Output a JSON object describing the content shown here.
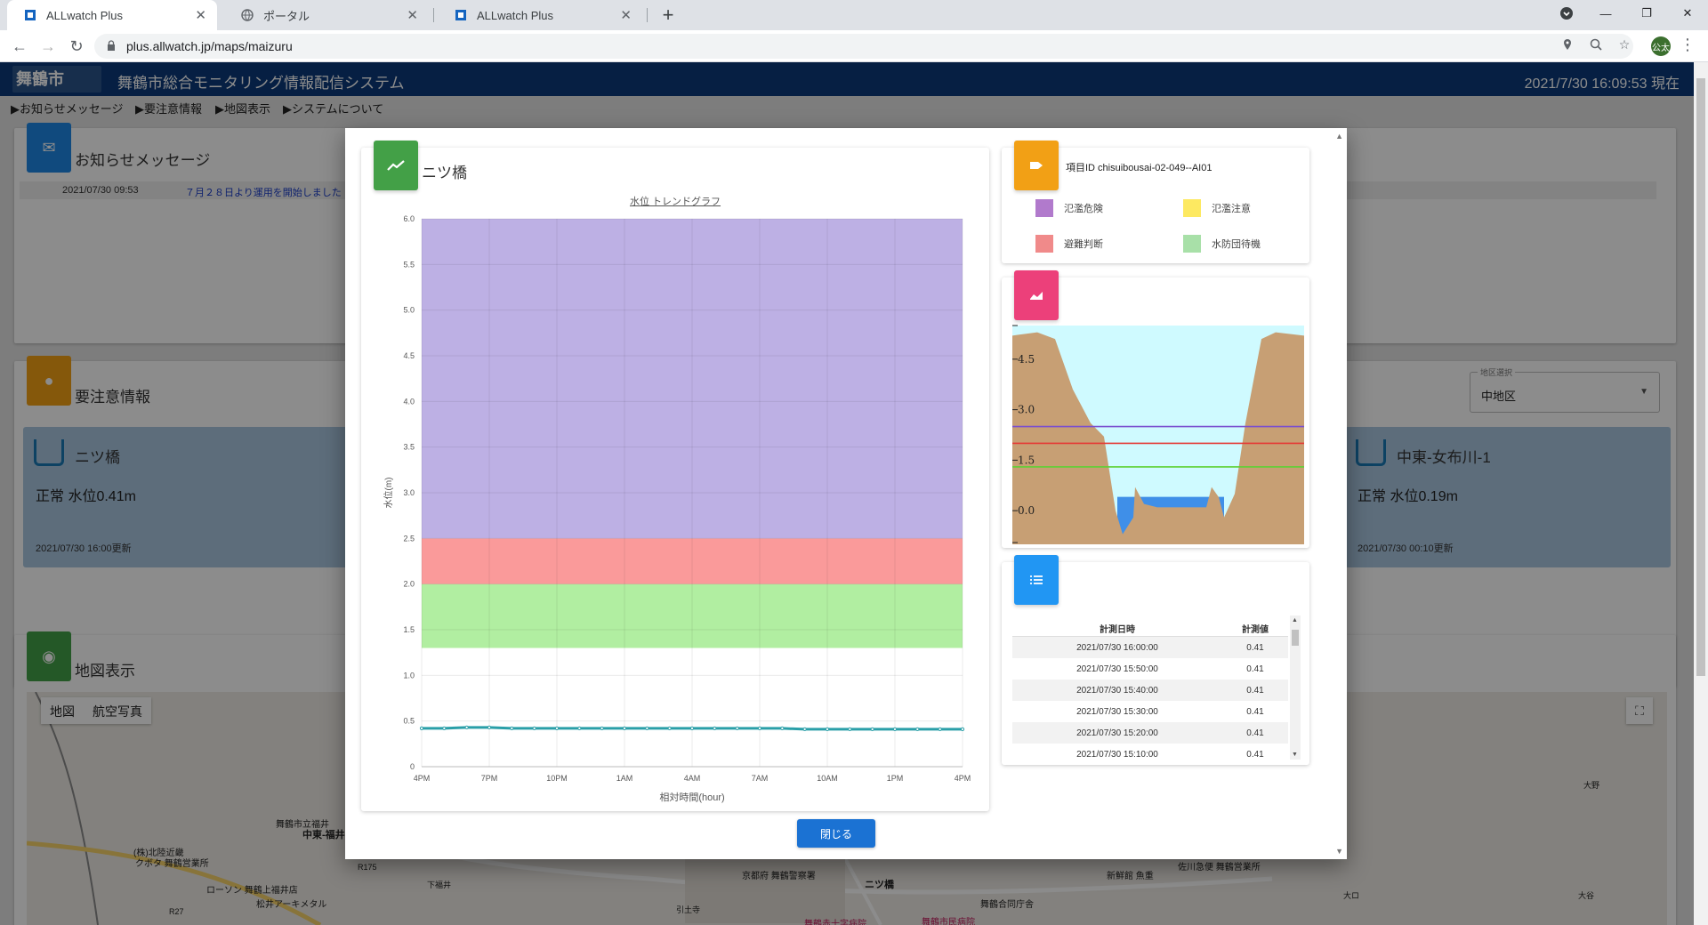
{
  "browser": {
    "tabs": [
      {
        "label": "ALLwatch Plus",
        "active": true
      },
      {
        "label": "ポータル",
        "active": false
      },
      {
        "label": "ALLwatch Plus",
        "active": false
      }
    ],
    "url": "plus.allwatch.jp/maps/maizuru",
    "profile_initials": "公太"
  },
  "site": {
    "logo_text": "舞鶴市",
    "title": "舞鶴市総合モニタリング情報配信システム",
    "datetime": "2021/7/30 16:09:53 現在",
    "nav": [
      "▶お知らせメッセージ",
      "▶要注意情報",
      "▶地図表示",
      "▶システムについて"
    ]
  },
  "notices": {
    "title": "お知らせメッセージ",
    "rows": [
      {
        "date": "2021/07/30 09:53",
        "text": "７月２８日より運用を開始しました"
      }
    ]
  },
  "alerts": {
    "title": "要注意情報",
    "region_label": "地区選択",
    "region_value": "中地区",
    "cards": [
      {
        "name": "ニツ橋",
        "status": "正常 水位0.41m",
        "updated": "2021/07/30 16:00更新"
      },
      {
        "name": "中東-女布川-1",
        "status": "正常 水位0.19m",
        "updated": "2021/07/30 00:10更新"
      }
    ]
  },
  "map_section": {
    "title": "地図表示",
    "toggle": [
      "地図",
      "航空写真"
    ],
    "labels": [
      "中東-福井",
      "ニツ橋",
      "舞鶴市立福井",
      "松井アーキメタル",
      "ローソン 舞鶴上福井店",
      "京都府 舞鶴警察署",
      "新鮮館 魚重",
      "佐川急便 舞鶴営業所",
      "クボタ 舞鶴営業所",
      "(株)北陸近畿",
      "R175",
      "R27",
      "下福井",
      "引土寺",
      "舞鶴赤十字病院",
      "舞鶴市民病院",
      "舞鶴合同庁舎",
      "大野",
      "大谷",
      "大ロ"
    ]
  },
  "modal": {
    "station_name": "ニツ橋",
    "chart_subtitle": "水位 トレンドグラフ",
    "close_label": "閉じる",
    "item_id": "項目ID chisuibousai-02-049--AI01",
    "legend": [
      {
        "label": "氾濫危険",
        "color": "#b17acc"
      },
      {
        "label": "氾濫注意",
        "color": "#fde961"
      },
      {
        "label": "避難判断",
        "color": "#f08a8a"
      },
      {
        "label": "水防団待機",
        "color": "#a8e0a8"
      }
    ],
    "table": {
      "headers": [
        "計測日時",
        "計測値"
      ],
      "rows": [
        {
          "date": "2021/07/30 16:00:00",
          "value": "0.41"
        },
        {
          "date": "2021/07/30 15:50:00",
          "value": "0.41"
        },
        {
          "date": "2021/07/30 15:40:00",
          "value": "0.41"
        },
        {
          "date": "2021/07/30 15:30:00",
          "value": "0.41"
        },
        {
          "date": "2021/07/30 15:20:00",
          "value": "0.41"
        },
        {
          "date": "2021/07/30 15:10:00",
          "value": "0.41"
        }
      ]
    },
    "cross_section": {
      "tick_labels": [
        "4.5",
        "3.0",
        "1.5",
        "0.0"
      ],
      "thresholds": [
        {
          "value": 2.5,
          "color": "#7a4fcf"
        },
        {
          "value": 2.0,
          "color": "#e53935"
        },
        {
          "value": 1.3,
          "color": "#5fd035"
        }
      ],
      "water_level": 0.41
    }
  },
  "chart_data": {
    "type": "line",
    "title": "水位 トレンドグラフ",
    "xlabel": "相対時間(hour)",
    "ylabel": "水位(m)",
    "ylim": [
      0,
      6
    ],
    "yticks": [
      "0",
      "0.5",
      "1.0",
      "1.5",
      "2.0",
      "2.5",
      "3.0",
      "3.5",
      "4.0",
      "4.5",
      "5.0",
      "5.5",
      "6.0"
    ],
    "xticks": [
      "4PM",
      "7PM",
      "10PM",
      "1AM",
      "4AM",
      "7AM",
      "10AM",
      "1PM",
      "4PM"
    ],
    "bands": [
      {
        "from": 1.3,
        "to": 2.0,
        "color": "#b1eea1"
      },
      {
        "from": 2.0,
        "to": 2.5,
        "color": "#fa9a9a"
      },
      {
        "from": 2.5,
        "to": 6.0,
        "color": "#bdb0e4"
      }
    ],
    "series": [
      {
        "color": "#2a9fa8",
        "x": [
          0,
          1,
          2,
          3,
          4,
          5,
          6,
          7,
          8,
          9,
          10,
          11,
          12,
          13,
          14,
          15,
          16,
          17,
          18,
          19,
          20,
          21,
          22,
          23,
          24
        ],
        "values": [
          0.42,
          0.42,
          0.43,
          0.43,
          0.42,
          0.42,
          0.42,
          0.42,
          0.42,
          0.42,
          0.42,
          0.42,
          0.42,
          0.42,
          0.42,
          0.42,
          0.42,
          0.41,
          0.41,
          0.41,
          0.41,
          0.41,
          0.41,
          0.41,
          0.41
        ]
      }
    ]
  }
}
